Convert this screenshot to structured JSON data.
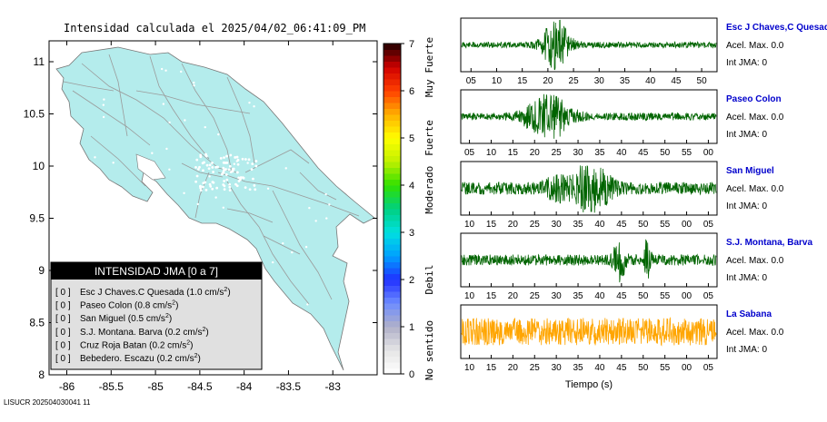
{
  "title": "Intensidad calculada el 2025/04/02_06:41:09_PM",
  "footer": "LISUCR 202504030041 11",
  "map": {
    "x_ticks": [
      "-86",
      "-85.5",
      "-85",
      "-84.5",
      "-84",
      "-83.5",
      "-83"
    ],
    "y_ticks": [
      "11",
      "10.5",
      "10",
      "9.5",
      "9",
      "8.5",
      "8"
    ],
    "x_range": [
      -86.2,
      -82.5
    ],
    "y_range": [
      8,
      11.2
    ],
    "land_color": "#b4ecec",
    "road_color": "#9a9a9a"
  },
  "legend": {
    "title": "INTENSIDAD JMA [0 a 7]",
    "entries": [
      {
        "value": "[ 0 ]",
        "text": "Esc J Chaves.C Quesada (1.0 cm/s",
        "sup": "2",
        ")": ")"
      },
      {
        "value": "[ 0 ]",
        "text": "Paseo Colon (0.8 cm/s",
        "sup": "2"
      },
      {
        "value": "[ 0 ]",
        "text": "San Miguel (0.5 cm/s",
        "sup": "2"
      },
      {
        "value": "[ 0 ]",
        "text": "S.J. Montana. Barva (0.2 cm/s",
        "sup": "2"
      },
      {
        "value": "[ 0 ]",
        "text": "Cruz Roja Batan (0.2 cm/s",
        "sup": "2"
      },
      {
        "value": "[ 0 ]",
        "text": "Bebedero. Escazu (0.2 cm/s",
        "sup": "2"
      }
    ]
  },
  "colorbar": {
    "ticks": [
      "0",
      "1",
      "2",
      "3",
      "4",
      "5",
      "6",
      "7"
    ],
    "labels": [
      {
        "text": "No sentido",
        "at": 0.5
      },
      {
        "text": "Debil",
        "at": 2.0
      },
      {
        "text": "Moderado",
        "at": 3.9
      },
      {
        "text": "Fuerte",
        "at": 5.0
      },
      {
        "text": "Muy Fuerte",
        "at": 6.5
      }
    ]
  },
  "chart_data": [
    {
      "type": "line",
      "station": "Esc J Chaves,C Quesada",
      "accel": "Acel. Max. 0.0",
      "jma": "Int JMA: 0",
      "color": "#006400",
      "x_ticks": [
        "05",
        "10",
        "15",
        "20",
        "25",
        "30",
        "35",
        "40",
        "45",
        "50"
      ],
      "x_start": 3,
      "x_end": 53,
      "event_center": 21.5,
      "event_width": 2.5,
      "amplitude": 1.0,
      "noise": 0.12
    },
    {
      "type": "line",
      "station": "Paseo Colon",
      "accel": "Acel. Max. 0.0",
      "jma": "Int JMA: 0",
      "color": "#006400",
      "x_ticks": [
        "05",
        "10",
        "15",
        "20",
        "25",
        "30",
        "35",
        "40",
        "45",
        "50",
        "55",
        "00"
      ],
      "x_start": 3,
      "x_end": 62,
      "event_center": 23,
      "event_width": 5,
      "amplitude": 0.9,
      "noise": 0.15
    },
    {
      "type": "line",
      "station": "San Miguel",
      "accel": "Acel. Max. 0.0",
      "jma": "Int JMA: 0",
      "color": "#006400",
      "x_ticks": [
        "10",
        "15",
        "20",
        "25",
        "30",
        "35",
        "40",
        "45",
        "50",
        "55",
        "00",
        "05"
      ],
      "x_start": 8,
      "x_end": 67,
      "event_center": 38,
      "event_width": 4,
      "amplitude": 1.0,
      "noise": 0.25
    },
    {
      "type": "line",
      "station": "S.J. Montana, Barva",
      "accel": "Acel. Max. 0.0",
      "jma": "Int JMA: 0",
      "color": "#006400",
      "x_ticks": [
        "10",
        "15",
        "20",
        "25",
        "30",
        "35",
        "40",
        "45",
        "50",
        "55",
        "00",
        "05"
      ],
      "x_start": 8,
      "x_end": 67,
      "event_center": 44.5,
      "event_width": 1.2,
      "amplitude": 1.0,
      "noise": 0.22
    },
    {
      "type": "line",
      "station": "La Sabana",
      "accel": "Acel. Max. 0.0",
      "jma": "Int JMA: 0",
      "color": "#ffa500",
      "x_ticks": [
        "10",
        "15",
        "20",
        "25",
        "30",
        "35",
        "40",
        "45",
        "50",
        "55",
        "00",
        "05"
      ],
      "x_start": 8,
      "x_end": 67,
      "event_center": null,
      "event_width": 0,
      "amplitude": 1.0,
      "noise": 0.55
    }
  ],
  "time_axis_label": "Tiempo (s)"
}
